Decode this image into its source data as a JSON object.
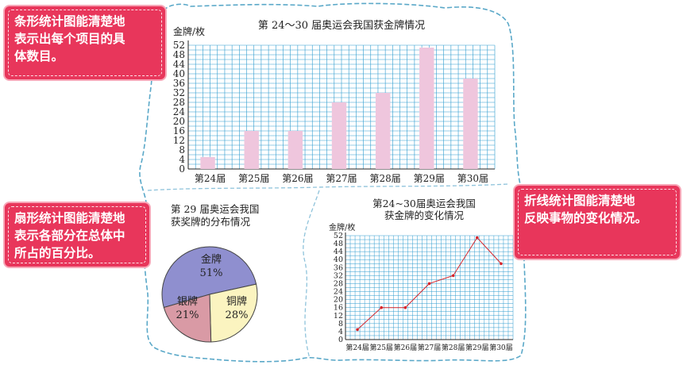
{
  "callouts": {
    "bar": "条形统计图能清楚地\n表示出每个项目的具\n体数目。",
    "pie": "扇形统计图能清楚地\n表示各部分在总体中\n所占的百分比。",
    "line": "折线统计图能清楚地\n反映事物的变化情况。"
  },
  "colors": {
    "grid": "#2f9ccf",
    "bar_fill": "#efc6dd",
    "line": "#d4242b",
    "pie_gold": "#8f8fcf",
    "pie_silver": "#d99aa5",
    "pie_bronze": "#fbf4c0",
    "callout": "#e8365b",
    "cloud_border": "#5aa8c8"
  },
  "chart_data": [
    {
      "type": "bar",
      "title": "第 24～30 届奥运会我国获金牌情况",
      "ylabel": "金牌/枚",
      "categories": [
        "第24届",
        "第25届",
        "第26届",
        "第27届",
        "第28届",
        "第29届",
        "第30届"
      ],
      "values": [
        5,
        16,
        16,
        28,
        32,
        51,
        38
      ],
      "ylim": [
        0,
        52
      ],
      "yticks": [
        0,
        4,
        8,
        12,
        16,
        20,
        24,
        28,
        32,
        36,
        40,
        44,
        48,
        52
      ],
      "grid": true
    },
    {
      "type": "pie",
      "title": [
        "第 29 届奥运会我国",
        "获奖牌的分布情况"
      ],
      "slices": [
        {
          "label": "金牌",
          "pct_label": "51%",
          "value": 51
        },
        {
          "label": "银牌",
          "pct_label": "21%",
          "value": 21
        },
        {
          "label": "铜牌",
          "pct_label": "28%",
          "value": 28
        }
      ]
    },
    {
      "type": "line",
      "title": [
        "第24~30届奥运会我国",
        "获金牌的变化情况"
      ],
      "ylabel": "金牌/枚",
      "categories": [
        "第24届",
        "第25届",
        "第26届",
        "第27届",
        "第28届",
        "第29届",
        "第30届"
      ],
      "values": [
        5,
        16,
        16,
        28,
        32,
        51,
        38
      ],
      "ylim": [
        0,
        52
      ],
      "yticks": [
        0,
        4,
        8,
        12,
        16,
        20,
        24,
        28,
        32,
        36,
        40,
        44,
        48,
        52
      ],
      "grid": true
    }
  ]
}
